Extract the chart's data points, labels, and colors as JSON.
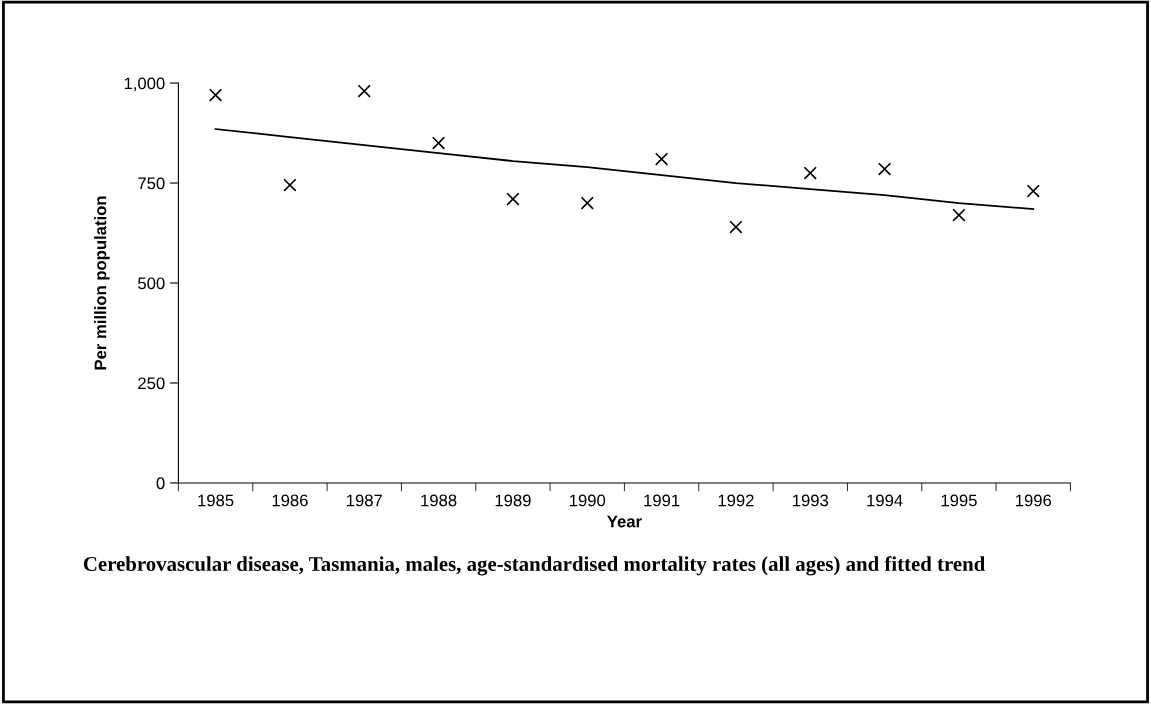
{
  "chart_data": {
    "type": "scatter",
    "title": "Cerebrovascular disease, Tasmania, males, age-standardised mortality rates (all ages) and fitted trend",
    "xlabel": "Year",
    "ylabel": "Per million population",
    "categories": [
      "1985",
      "1986",
      "1987",
      "1988",
      "1989",
      "1990",
      "1991",
      "1992",
      "1993",
      "1994",
      "1995",
      "1996"
    ],
    "series": [
      {
        "color": "#000000",
        "marker": "cross",
        "values": [
          970,
          745,
          980,
          850,
          710,
          700,
          810,
          640,
          775,
          785,
          670,
          730
        ]
      },
      {
        "type": "line",
        "color": "#000000",
        "marker": "none",
        "line_style": "solid",
        "values": [
          885,
          865,
          845,
          825,
          805,
          790,
          770,
          750,
          735,
          720,
          700,
          685
        ]
      }
    ],
    "ylim": [
      0,
      1000
    ],
    "yticks": [
      0,
      250,
      500,
      750,
      {
        "value": 1000,
        "label": "1,000"
      }
    ],
    "grid": false,
    "legend": false
  }
}
